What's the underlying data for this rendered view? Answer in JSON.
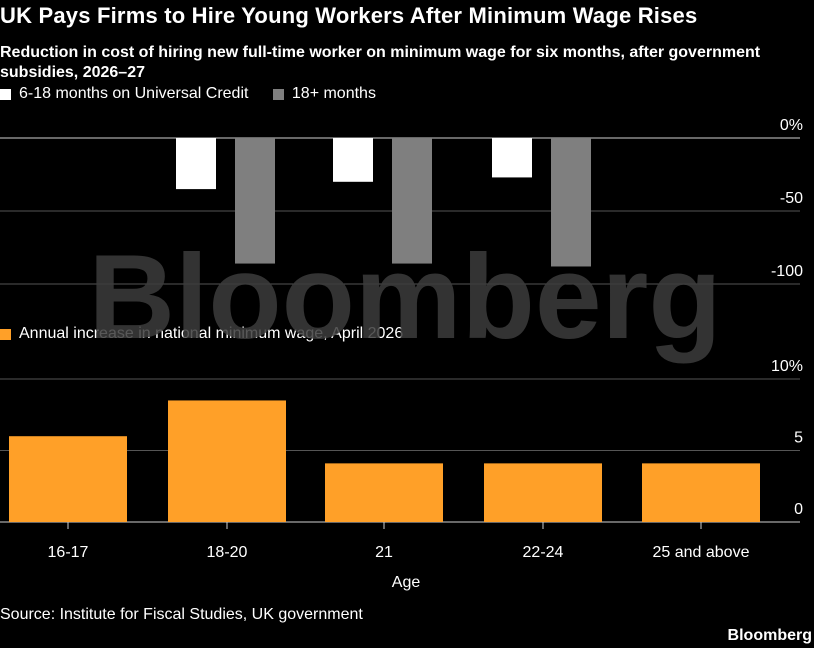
{
  "title": "UK Pays Firms to Hire Young Workers After Minimum Wage Rises",
  "subtitle": "Reduction in cost of hiring new full-time worker on minimum wage for six months, after government subsidies, 2026–27",
  "source": "Source: Institute for Fiscal Studies, UK government",
  "brand": "Bloomberg",
  "watermark": "Bloomberg",
  "colors": {
    "white_series": "#ffffff",
    "gray_series": "#7f7f7f",
    "orange_series": "#ffa028",
    "background": "#000000",
    "grid": "#555555"
  },
  "chart_data": [
    {
      "type": "bar",
      "categories": [
        "16-17",
        "18-20",
        "21",
        "22-24",
        "25 and above"
      ],
      "series": [
        {
          "name": "6-18 months on Universal Credit",
          "values": [
            null,
            -35,
            -30,
            -27,
            null
          ]
        },
        {
          "name": "18+ months",
          "values": [
            null,
            -86,
            -86,
            -88,
            null
          ]
        }
      ],
      "yticks": [
        "0%",
        "-50",
        "-100"
      ],
      "ylim": [
        -100,
        0
      ],
      "legend": "top-left",
      "grid": true
    },
    {
      "type": "bar",
      "categories": [
        "16-17",
        "18-20",
        "21",
        "22-24",
        "25 and above"
      ],
      "series": [
        {
          "name": "Annual increase in national minimum wage, April 2026",
          "values": [
            6,
            8.5,
            4.1,
            4.1,
            4.1
          ]
        }
      ],
      "yticks": [
        "10%",
        "5",
        "0"
      ],
      "ylim": [
        0,
        10
      ],
      "xlabel": "Age",
      "legend": "top-left",
      "grid": true
    }
  ]
}
